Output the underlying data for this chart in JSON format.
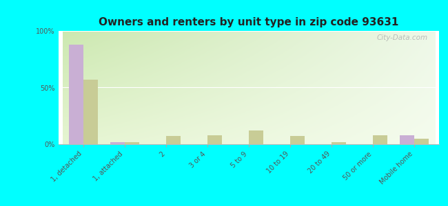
{
  "title": "Owners and renters by unit type in zip code 93631",
  "categories": [
    "1, detached",
    "1, attached",
    "2",
    "3 or 4",
    "5 to 9",
    "10 to 19",
    "20 to 49",
    "50 or more",
    "Mobile home"
  ],
  "owner_values": [
    88,
    2,
    0,
    0,
    0,
    0,
    0,
    0,
    8
  ],
  "renter_values": [
    57,
    2,
    7,
    8,
    12,
    7,
    2,
    8,
    5
  ],
  "owner_color": "#c9afd4",
  "renter_color": "#c8cc96",
  "background_color": "#00ffff",
  "grad_color_topleft": "#cce8b0",
  "grad_color_topright": "#eef8e8",
  "grad_color_bottom": "#f0fae8",
  "ymax": 100,
  "yticks": [
    0,
    50,
    100
  ],
  "ytick_labels": [
    "0%",
    "50%",
    "100%"
  ],
  "bar_width": 0.35,
  "watermark": "City-Data.com",
  "title_fontsize": 11,
  "tick_fontsize": 7,
  "legend_fontsize": 8
}
